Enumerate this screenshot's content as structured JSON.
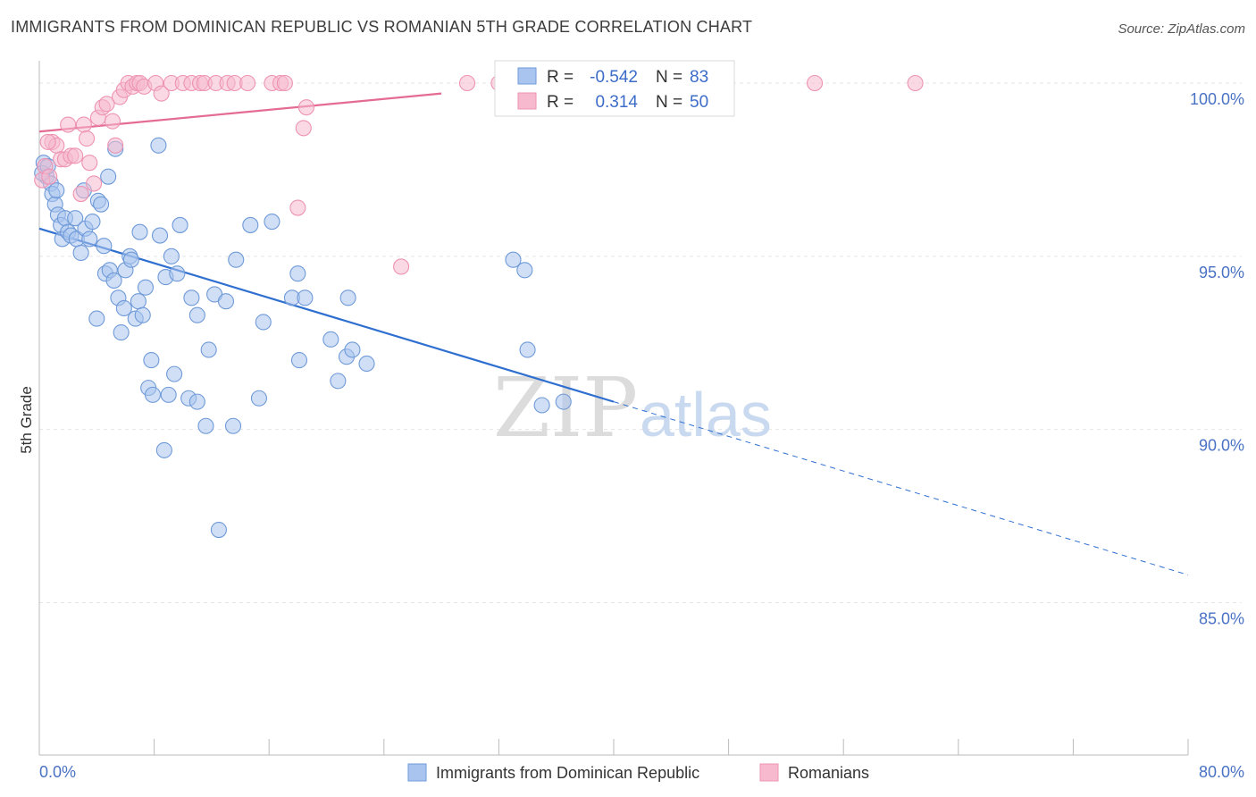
{
  "title": "IMMIGRANTS FROM DOMINICAN REPUBLIC VS ROMANIAN 5TH GRADE CORRELATION CHART",
  "source": "Source: ZipAtlas.com",
  "watermark": {
    "zip": "ZIP",
    "atlas": "atlas"
  },
  "colors": {
    "blue_fill": "#a9c5ef",
    "blue_stroke": "#6f9ad8",
    "blue_line": "#2f6fd0",
    "pink_fill": "#f6b9cd",
    "pink_stroke": "#ee93b2",
    "pink_line": "#e46b92",
    "tick_color": "#4a72c4",
    "grid": "#e5e5e5"
  },
  "legend": {
    "rows": [
      {
        "r_label": "R =",
        "r_value": "-0.542",
        "n_label": "N =",
        "n_value": "83",
        "color": "blue"
      },
      {
        "r_label": "R =",
        "r_value": "0.314",
        "n_label": "N =",
        "n_value": "50",
        "color": "pink"
      }
    ]
  },
  "bottom_legend": [
    "Immigrants from Dominican Republic",
    "Romanians"
  ],
  "chart_data": {
    "type": "scatter",
    "title": "IMMIGRANTS FROM DOMINICAN REPUBLIC VS ROMANIAN 5TH GRADE CORRELATION CHART",
    "xlabel": "",
    "ylabel": "5th Grade",
    "xlim": [
      0,
      80
    ],
    "ylim": [
      80.6,
      100.8
    ],
    "x_tick_labels": [
      "0.0%",
      "80.0%"
    ],
    "y_ticks": [
      100,
      95,
      90,
      85
    ],
    "y_tick_labels": [
      "100.0%",
      "95.0%",
      "90.0%",
      "85.0%"
    ],
    "grid": "horizontal dashed",
    "legend_position": "top-center",
    "series": [
      {
        "name": "Immigrants from Dominican Republic",
        "color": "blue",
        "trend": {
          "x0": 0,
          "y0": 95.8,
          "x1": 40,
          "y1": 90.8,
          "dashed_to_x": 80,
          "dashed_to_y": 85.8
        },
        "points": [
          [
            0.3,
            97.7
          ],
          [
            0.5,
            97.3
          ],
          [
            0.8,
            97.1
          ],
          [
            0.9,
            96.8
          ],
          [
            1.1,
            96.5
          ],
          [
            1.2,
            96.9
          ],
          [
            1.3,
            96.2
          ],
          [
            1.5,
            95.9
          ],
          [
            1.6,
            95.5
          ],
          [
            1.8,
            96.1
          ],
          [
            2.0,
            95.7
          ],
          [
            2.2,
            95.6
          ],
          [
            2.5,
            96.1
          ],
          [
            2.6,
            95.5
          ],
          [
            2.9,
            95.1
          ],
          [
            3.1,
            96.9
          ],
          [
            3.2,
            95.8
          ],
          [
            3.5,
            95.5
          ],
          [
            3.7,
            96.0
          ],
          [
            4.0,
            93.2
          ],
          [
            4.1,
            96.6
          ],
          [
            4.3,
            96.5
          ],
          [
            4.5,
            95.3
          ],
          [
            4.6,
            94.5
          ],
          [
            4.8,
            97.3
          ],
          [
            4.9,
            94.6
          ],
          [
            5.2,
            94.3
          ],
          [
            5.3,
            98.1
          ],
          [
            5.5,
            93.8
          ],
          [
            5.7,
            92.8
          ],
          [
            5.9,
            93.5
          ],
          [
            6.0,
            94.6
          ],
          [
            6.3,
            95.0
          ],
          [
            6.4,
            94.9
          ],
          [
            6.7,
            93.2
          ],
          [
            6.9,
            93.7
          ],
          [
            7.0,
            95.7
          ],
          [
            7.2,
            93.3
          ],
          [
            7.4,
            94.1
          ],
          [
            7.6,
            91.2
          ],
          [
            7.8,
            92.0
          ],
          [
            7.9,
            91.0
          ],
          [
            8.3,
            98.2
          ],
          [
            8.4,
            95.6
          ],
          [
            8.7,
            89.4
          ],
          [
            8.8,
            94.4
          ],
          [
            9.0,
            91.0
          ],
          [
            9.2,
            95.0
          ],
          [
            9.4,
            91.6
          ],
          [
            9.6,
            94.5
          ],
          [
            9.8,
            95.9
          ],
          [
            10.4,
            90.9
          ],
          [
            10.6,
            93.8
          ],
          [
            11.0,
            93.3
          ],
          [
            11.0,
            90.8
          ],
          [
            11.8,
            92.3
          ],
          [
            12.2,
            93.9
          ],
          [
            11.6,
            90.1
          ],
          [
            12.5,
            87.1
          ],
          [
            13.0,
            93.7
          ],
          [
            13.5,
            90.1
          ],
          [
            13.7,
            94.9
          ],
          [
            14.7,
            95.9
          ],
          [
            15.3,
            90.9
          ],
          [
            15.6,
            93.1
          ],
          [
            16.2,
            96.0
          ],
          [
            17.6,
            93.8
          ],
          [
            18.0,
            94.5
          ],
          [
            18.1,
            92.0
          ],
          [
            18.5,
            93.8
          ],
          [
            20.3,
            92.6
          ],
          [
            20.8,
            91.4
          ],
          [
            21.4,
            92.1
          ],
          [
            21.5,
            93.8
          ],
          [
            21.8,
            92.3
          ],
          [
            22.8,
            91.9
          ],
          [
            33.0,
            94.9
          ],
          [
            33.8,
            94.6
          ],
          [
            34.0,
            92.3
          ],
          [
            35.0,
            90.7
          ],
          [
            36.5,
            90.8
          ],
          [
            0.2,
            97.4
          ],
          [
            0.6,
            97.6
          ]
        ]
      },
      {
        "name": "Romanians",
        "color": "pink",
        "trend": {
          "x0": 0,
          "y0": 98.6,
          "x1": 28,
          "y1": 99.7
        },
        "points": [
          [
            0.2,
            97.2
          ],
          [
            0.4,
            97.6
          ],
          [
            0.7,
            97.3
          ],
          [
            0.9,
            98.3
          ],
          [
            1.2,
            98.2
          ],
          [
            1.5,
            97.8
          ],
          [
            1.8,
            97.8
          ],
          [
            2.0,
            98.8
          ],
          [
            2.2,
            97.9
          ],
          [
            2.5,
            97.9
          ],
          [
            2.9,
            96.8
          ],
          [
            3.1,
            98.8
          ],
          [
            3.3,
            98.4
          ],
          [
            3.5,
            97.7
          ],
          [
            3.8,
            97.1
          ],
          [
            4.1,
            99.0
          ],
          [
            4.4,
            99.3
          ],
          [
            4.7,
            99.4
          ],
          [
            5.1,
            98.9
          ],
          [
            5.3,
            98.2
          ],
          [
            5.6,
            99.6
          ],
          [
            5.9,
            99.8
          ],
          [
            6.2,
            100.0
          ],
          [
            6.5,
            99.9
          ],
          [
            6.8,
            100.0
          ],
          [
            7.0,
            100.0
          ],
          [
            7.3,
            99.9
          ],
          [
            8.1,
            100.0
          ],
          [
            8.5,
            99.7
          ],
          [
            9.2,
            100.0
          ],
          [
            10.0,
            100.0
          ],
          [
            10.6,
            100.0
          ],
          [
            11.2,
            100.0
          ],
          [
            11.5,
            100.0
          ],
          [
            12.3,
            100.0
          ],
          [
            13.1,
            100.0
          ],
          [
            13.6,
            100.0
          ],
          [
            14.5,
            100.0
          ],
          [
            16.2,
            100.0
          ],
          [
            16.8,
            100.0
          ],
          [
            17.1,
            100.0
          ],
          [
            18.0,
            96.4
          ],
          [
            18.4,
            98.7
          ],
          [
            18.6,
            99.3
          ],
          [
            25.2,
            94.7
          ],
          [
            29.8,
            100.0
          ],
          [
            32.0,
            100.0
          ],
          [
            54.0,
            100.0
          ],
          [
            61.0,
            100.0
          ],
          [
            0.6,
            98.3
          ]
        ]
      }
    ]
  }
}
